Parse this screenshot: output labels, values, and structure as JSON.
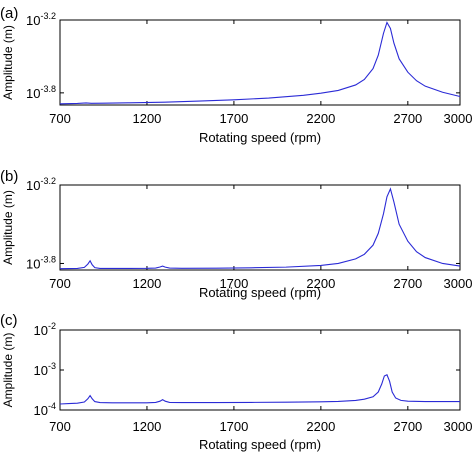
{
  "chart_data": [
    {
      "type": "line",
      "panel_label": "(a)",
      "xlabel": "Rotating speed (rpm)",
      "ylabel": "Amplitude (m)",
      "y_scale": "log10",
      "xlim": [
        700,
        3000
      ],
      "ylim_exp": [
        -3.9,
        -3.2
      ],
      "x_ticks": [
        700,
        1200,
        1700,
        2200,
        2700,
        3000
      ],
      "y_ticks": [
        {
          "base": "10",
          "exp": "-3.2",
          "value_exp": -3.2
        },
        {
          "base": "10",
          "exp": "-3.8",
          "value_exp": -3.8
        }
      ],
      "series": [
        {
          "color": "#2b2bd6",
          "x": [
            700,
            800,
            850,
            880,
            950,
            1100,
            1300,
            1500,
            1700,
            1900,
            2100,
            2200,
            2300,
            2400,
            2450,
            2500,
            2530,
            2560,
            2580,
            2600,
            2620,
            2650,
            2700,
            2750,
            2800,
            2900,
            3000
          ],
          "y_exp": [
            -3.89,
            -3.887,
            -3.883,
            -3.886,
            -3.885,
            -3.882,
            -3.877,
            -3.868,
            -3.857,
            -3.843,
            -3.82,
            -3.803,
            -3.78,
            -3.735,
            -3.69,
            -3.6,
            -3.49,
            -3.31,
            -3.22,
            -3.27,
            -3.39,
            -3.52,
            -3.63,
            -3.7,
            -3.745,
            -3.795,
            -3.83
          ]
        }
      ]
    },
    {
      "type": "line",
      "panel_label": "(b)",
      "xlabel": "Rotating speed (rpm)",
      "ylabel": "Amplitude (m)",
      "y_scale": "log10",
      "xlim": [
        700,
        3000
      ],
      "ylim_exp": [
        -3.85,
        -3.2
      ],
      "x_ticks": [
        700,
        1200,
        1700,
        2200,
        2700,
        3000
      ],
      "y_ticks": [
        {
          "base": "10",
          "exp": "-3.2",
          "value_exp": -3.2
        },
        {
          "base": "10",
          "exp": "-3.8",
          "value_exp": -3.8
        }
      ],
      "series": [
        {
          "color": "#2b2bd6",
          "x": [
            700,
            800,
            840,
            860,
            873,
            885,
            900,
            930,
            1000,
            1100,
            1200,
            1250,
            1275,
            1290,
            1305,
            1330,
            1400,
            1600,
            1800,
            2000,
            2200,
            2300,
            2400,
            2450,
            2500,
            2530,
            2560,
            2580,
            2600,
            2620,
            2650,
            2700,
            2750,
            2800,
            2900,
            3000
          ],
          "y_exp": [
            -3.84,
            -3.838,
            -3.83,
            -3.805,
            -3.78,
            -3.81,
            -3.832,
            -3.838,
            -3.838,
            -3.838,
            -3.837,
            -3.835,
            -3.827,
            -3.82,
            -3.828,
            -3.835,
            -3.837,
            -3.836,
            -3.833,
            -3.828,
            -3.815,
            -3.8,
            -3.765,
            -3.73,
            -3.66,
            -3.57,
            -3.42,
            -3.29,
            -3.23,
            -3.33,
            -3.5,
            -3.63,
            -3.71,
            -3.755,
            -3.8,
            -3.82
          ]
        }
      ]
    },
    {
      "type": "line",
      "panel_label": "(c)",
      "xlabel": "Rotating speed (rpm)",
      "ylabel": "Amplitude (m)",
      "y_scale": "log10",
      "xlim": [
        700,
        3000
      ],
      "ylim_exp": [
        -4,
        -2
      ],
      "x_ticks": [
        700,
        1200,
        1700,
        2200,
        2700,
        3000
      ],
      "y_ticks": [
        {
          "base": "10",
          "exp": "-2",
          "value_exp": -2
        },
        {
          "base": "10",
          "exp": "-3",
          "value_exp": -3
        },
        {
          "base": "10",
          "exp": "-4",
          "value_exp": -4
        }
      ],
      "series": [
        {
          "color": "#2b2bd6",
          "x": [
            700,
            750,
            800,
            840,
            860,
            873,
            885,
            900,
            930,
            1000,
            1100,
            1200,
            1250,
            1275,
            1290,
            1305,
            1330,
            1400,
            1600,
            1800,
            2000,
            2200,
            2300,
            2400,
            2450,
            2500,
            2530,
            2550,
            2565,
            2580,
            2595,
            2610,
            2630,
            2660,
            2700,
            2800,
            2900,
            3000
          ],
          "y_exp": [
            -3.85,
            -3.84,
            -3.83,
            -3.8,
            -3.72,
            -3.64,
            -3.72,
            -3.79,
            -3.815,
            -3.82,
            -3.82,
            -3.82,
            -3.81,
            -3.78,
            -3.74,
            -3.78,
            -3.81,
            -3.815,
            -3.815,
            -3.81,
            -3.805,
            -3.795,
            -3.785,
            -3.76,
            -3.73,
            -3.67,
            -3.55,
            -3.35,
            -3.15,
            -3.12,
            -3.28,
            -3.55,
            -3.7,
            -3.76,
            -3.78,
            -3.79,
            -3.79,
            -3.79
          ]
        }
      ]
    }
  ]
}
